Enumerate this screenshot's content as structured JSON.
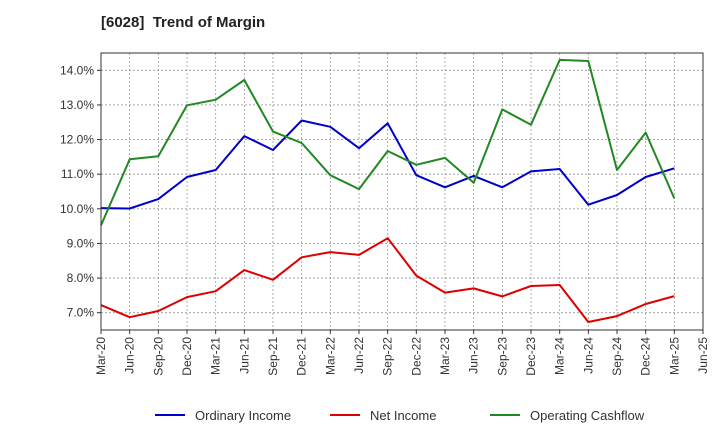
{
  "title": "[6028]  Trend of Margin",
  "colors": {
    "ordinary_income": "#0000cc",
    "net_income": "#dd0000",
    "operating_cashflow": "#228822",
    "grid": "#999999"
  },
  "chart_data": {
    "type": "line",
    "title": "[6028]  Trend of Margin",
    "xlabel": "",
    "ylabel": "",
    "ylim": [
      6.5,
      14.5
    ],
    "yticks": [
      "7.0%",
      "8.0%",
      "9.0%",
      "10.0%",
      "11.0%",
      "12.0%",
      "13.0%",
      "14.0%"
    ],
    "ytick_values": [
      7,
      8,
      9,
      10,
      11,
      12,
      13,
      14
    ],
    "categories": [
      "Mar-20",
      "Jun-20",
      "Sep-20",
      "Dec-20",
      "Mar-21",
      "Jun-21",
      "Sep-21",
      "Dec-21",
      "Mar-22",
      "Jun-22",
      "Sep-22",
      "Dec-22",
      "Mar-23",
      "Jun-23",
      "Sep-23",
      "Dec-23",
      "Mar-24",
      "Jun-24",
      "Sep-24",
      "Dec-24",
      "Mar-25",
      "Jun-25"
    ],
    "grid": true,
    "legend": "bottom",
    "series": [
      {
        "name": "Ordinary Income",
        "color": "#0000cc",
        "values": [
          10.02,
          10.01,
          10.28,
          10.92,
          11.12,
          12.1,
          11.7,
          12.55,
          12.37,
          11.75,
          12.47,
          10.97,
          10.62,
          10.95,
          10.62,
          11.08,
          11.15,
          10.12,
          10.4,
          10.92,
          11.17,
          null
        ]
      },
      {
        "name": "Net Income",
        "color": "#dd0000",
        "values": [
          7.22,
          6.87,
          7.05,
          7.45,
          7.62,
          8.23,
          7.95,
          8.6,
          8.75,
          8.67,
          9.15,
          8.07,
          7.58,
          7.7,
          7.47,
          7.77,
          7.8,
          6.73,
          6.9,
          7.25,
          7.48,
          null
        ]
      },
      {
        "name": "Operating Cashflow",
        "color": "#228822",
        "values": [
          9.52,
          11.43,
          11.52,
          12.99,
          13.15,
          13.72,
          12.23,
          11.9,
          10.97,
          10.57,
          11.67,
          11.27,
          11.47,
          10.75,
          12.87,
          12.43,
          14.3,
          14.27,
          11.12,
          12.2,
          10.3,
          null
        ]
      }
    ]
  }
}
